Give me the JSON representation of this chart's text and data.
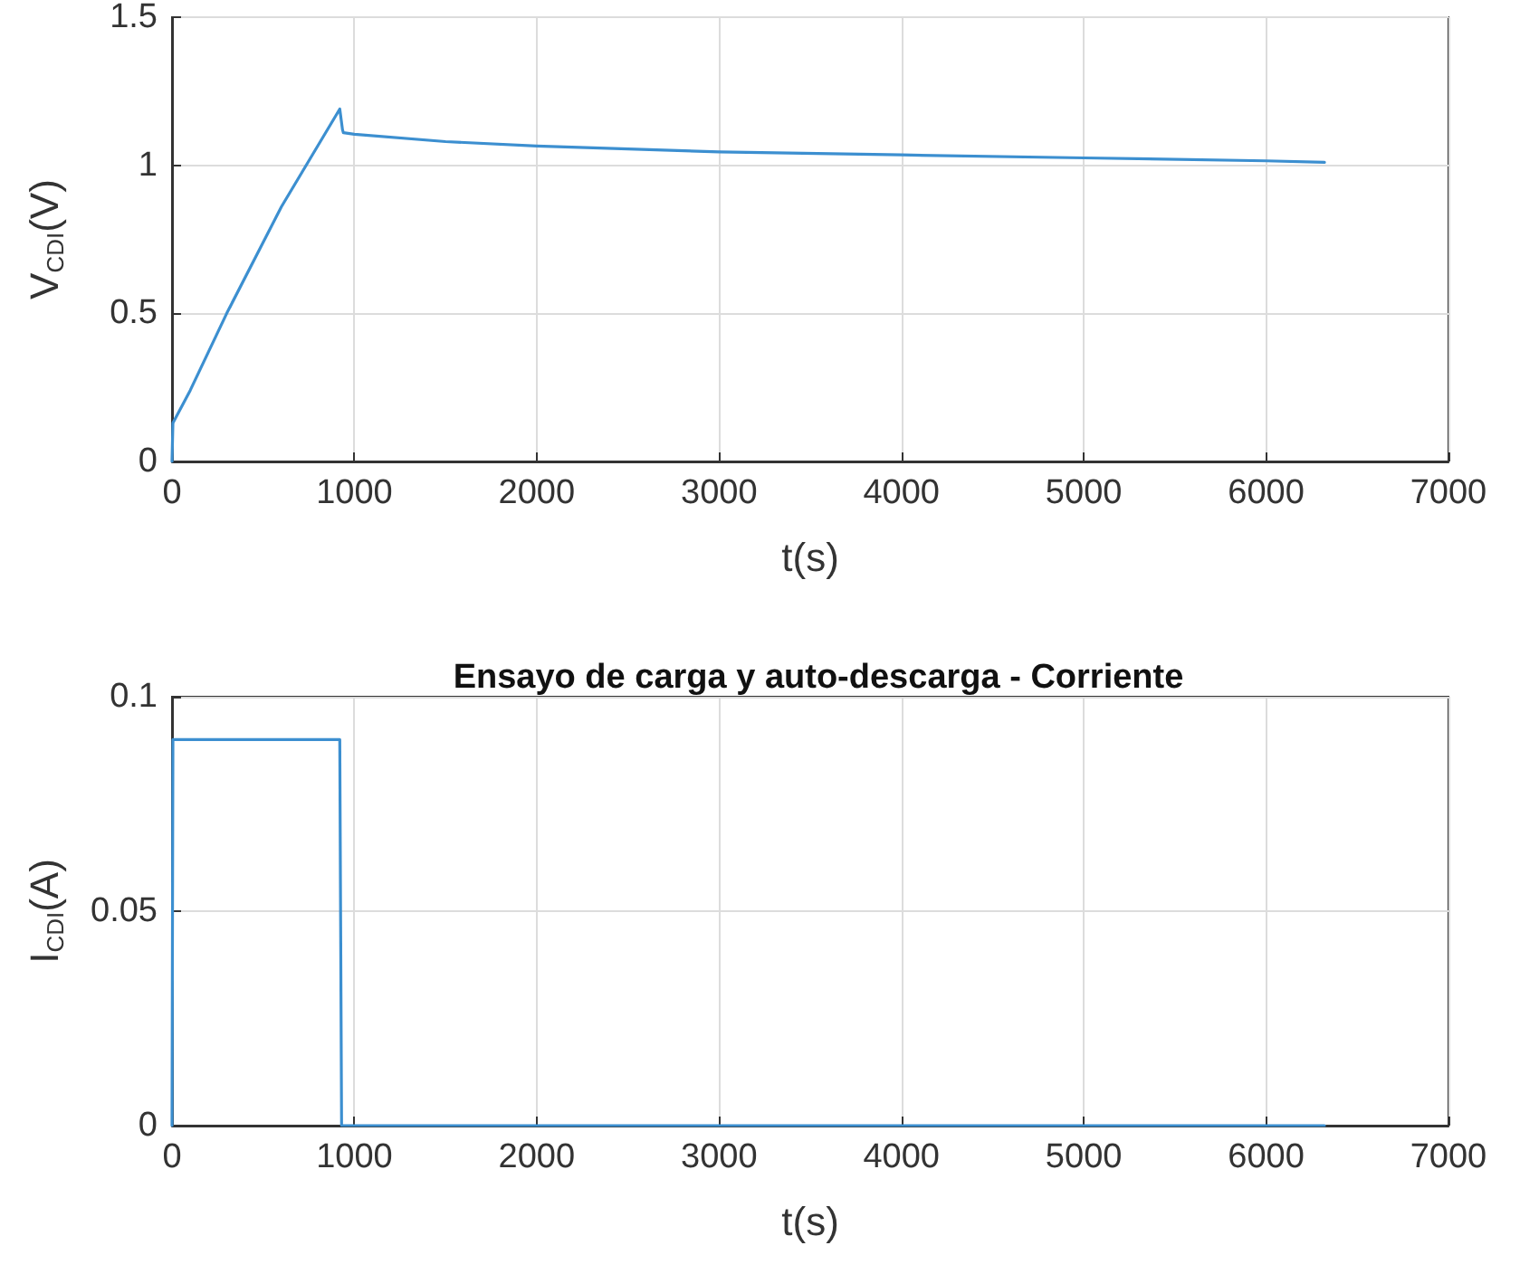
{
  "chart_data": [
    {
      "type": "line",
      "xlabel": "t(s)",
      "ylabel": "V$_{CDI}$(V)",
      "xlim": [
        0,
        7000
      ],
      "xticks": [
        0,
        1000,
        2000,
        3000,
        4000,
        5000,
        6000,
        7000
      ],
      "ylim": [
        0,
        1.5
      ],
      "yticks": [
        0,
        0.5,
        1,
        1.5
      ],
      "grid": true,
      "marker": "none",
      "line_style": "solid",
      "series": [
        {
          "color": "#3c8fd0",
          "x": [
            0,
            5,
            100,
            300,
            600,
            920,
            935,
            940,
            1000,
            1500,
            2000,
            3000,
            4000,
            5000,
            6000,
            6320
          ],
          "values": [
            0,
            0.13,
            0.24,
            0.5,
            0.86,
            1.19,
            1.12,
            1.11,
            1.105,
            1.08,
            1.065,
            1.045,
            1.035,
            1.025,
            1.015,
            1.01
          ]
        }
      ]
    },
    {
      "type": "line",
      "title": "Ensayo de carga y auto-descarga - Corriente",
      "xlabel": "t(s)",
      "ylabel": "I$_{CDI}$(A)",
      "xlim": [
        0,
        7000
      ],
      "xticks": [
        0,
        1000,
        2000,
        3000,
        4000,
        5000,
        6000,
        7000
      ],
      "ylim": [
        0,
        0.1
      ],
      "yticks": [
        0,
        0.05,
        0.1
      ],
      "grid": true,
      "marker": "none",
      "line_style": "solid",
      "series": [
        {
          "color": "#3c8fd0",
          "x": [
            0,
            5,
            920,
            930,
            6320
          ],
          "values": [
            0,
            0.09,
            0.09,
            0,
            0
          ]
        }
      ]
    }
  ]
}
